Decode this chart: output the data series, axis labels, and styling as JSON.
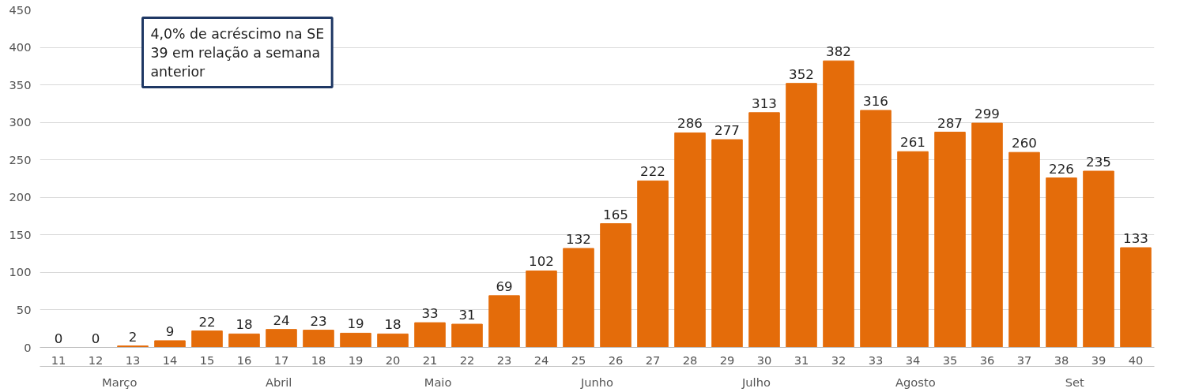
{
  "chart_data": {
    "type": "bar",
    "categories": [
      "11",
      "12",
      "13",
      "14",
      "15",
      "16",
      "17",
      "18",
      "19",
      "20",
      "21",
      "22",
      "23",
      "24",
      "25",
      "26",
      "27",
      "28",
      "29",
      "30",
      "31",
      "32",
      "33",
      "34",
      "35",
      "36",
      "37",
      "38",
      "39",
      "40"
    ],
    "values": [
      0,
      0,
      2,
      9,
      22,
      18,
      24,
      23,
      19,
      18,
      33,
      31,
      69,
      102,
      132,
      165,
      222,
      286,
      277,
      313,
      352,
      382,
      316,
      261,
      287,
      299,
      260,
      226,
      235,
      133
    ],
    "color": "#e46c0a",
    "ylim": [
      0,
      450
    ],
    "yticks": [
      0,
      50,
      100,
      150,
      200,
      250,
      300,
      350,
      400,
      450
    ],
    "grid": "y",
    "data_labels": true,
    "annotations": [
      "4,0% de acréscimo na SE\n39 em relação a semana\nanterior",
      "Março",
      "Abril",
      "Maio",
      "Junho",
      "Julho",
      "Agosto",
      "Set"
    ]
  }
}
